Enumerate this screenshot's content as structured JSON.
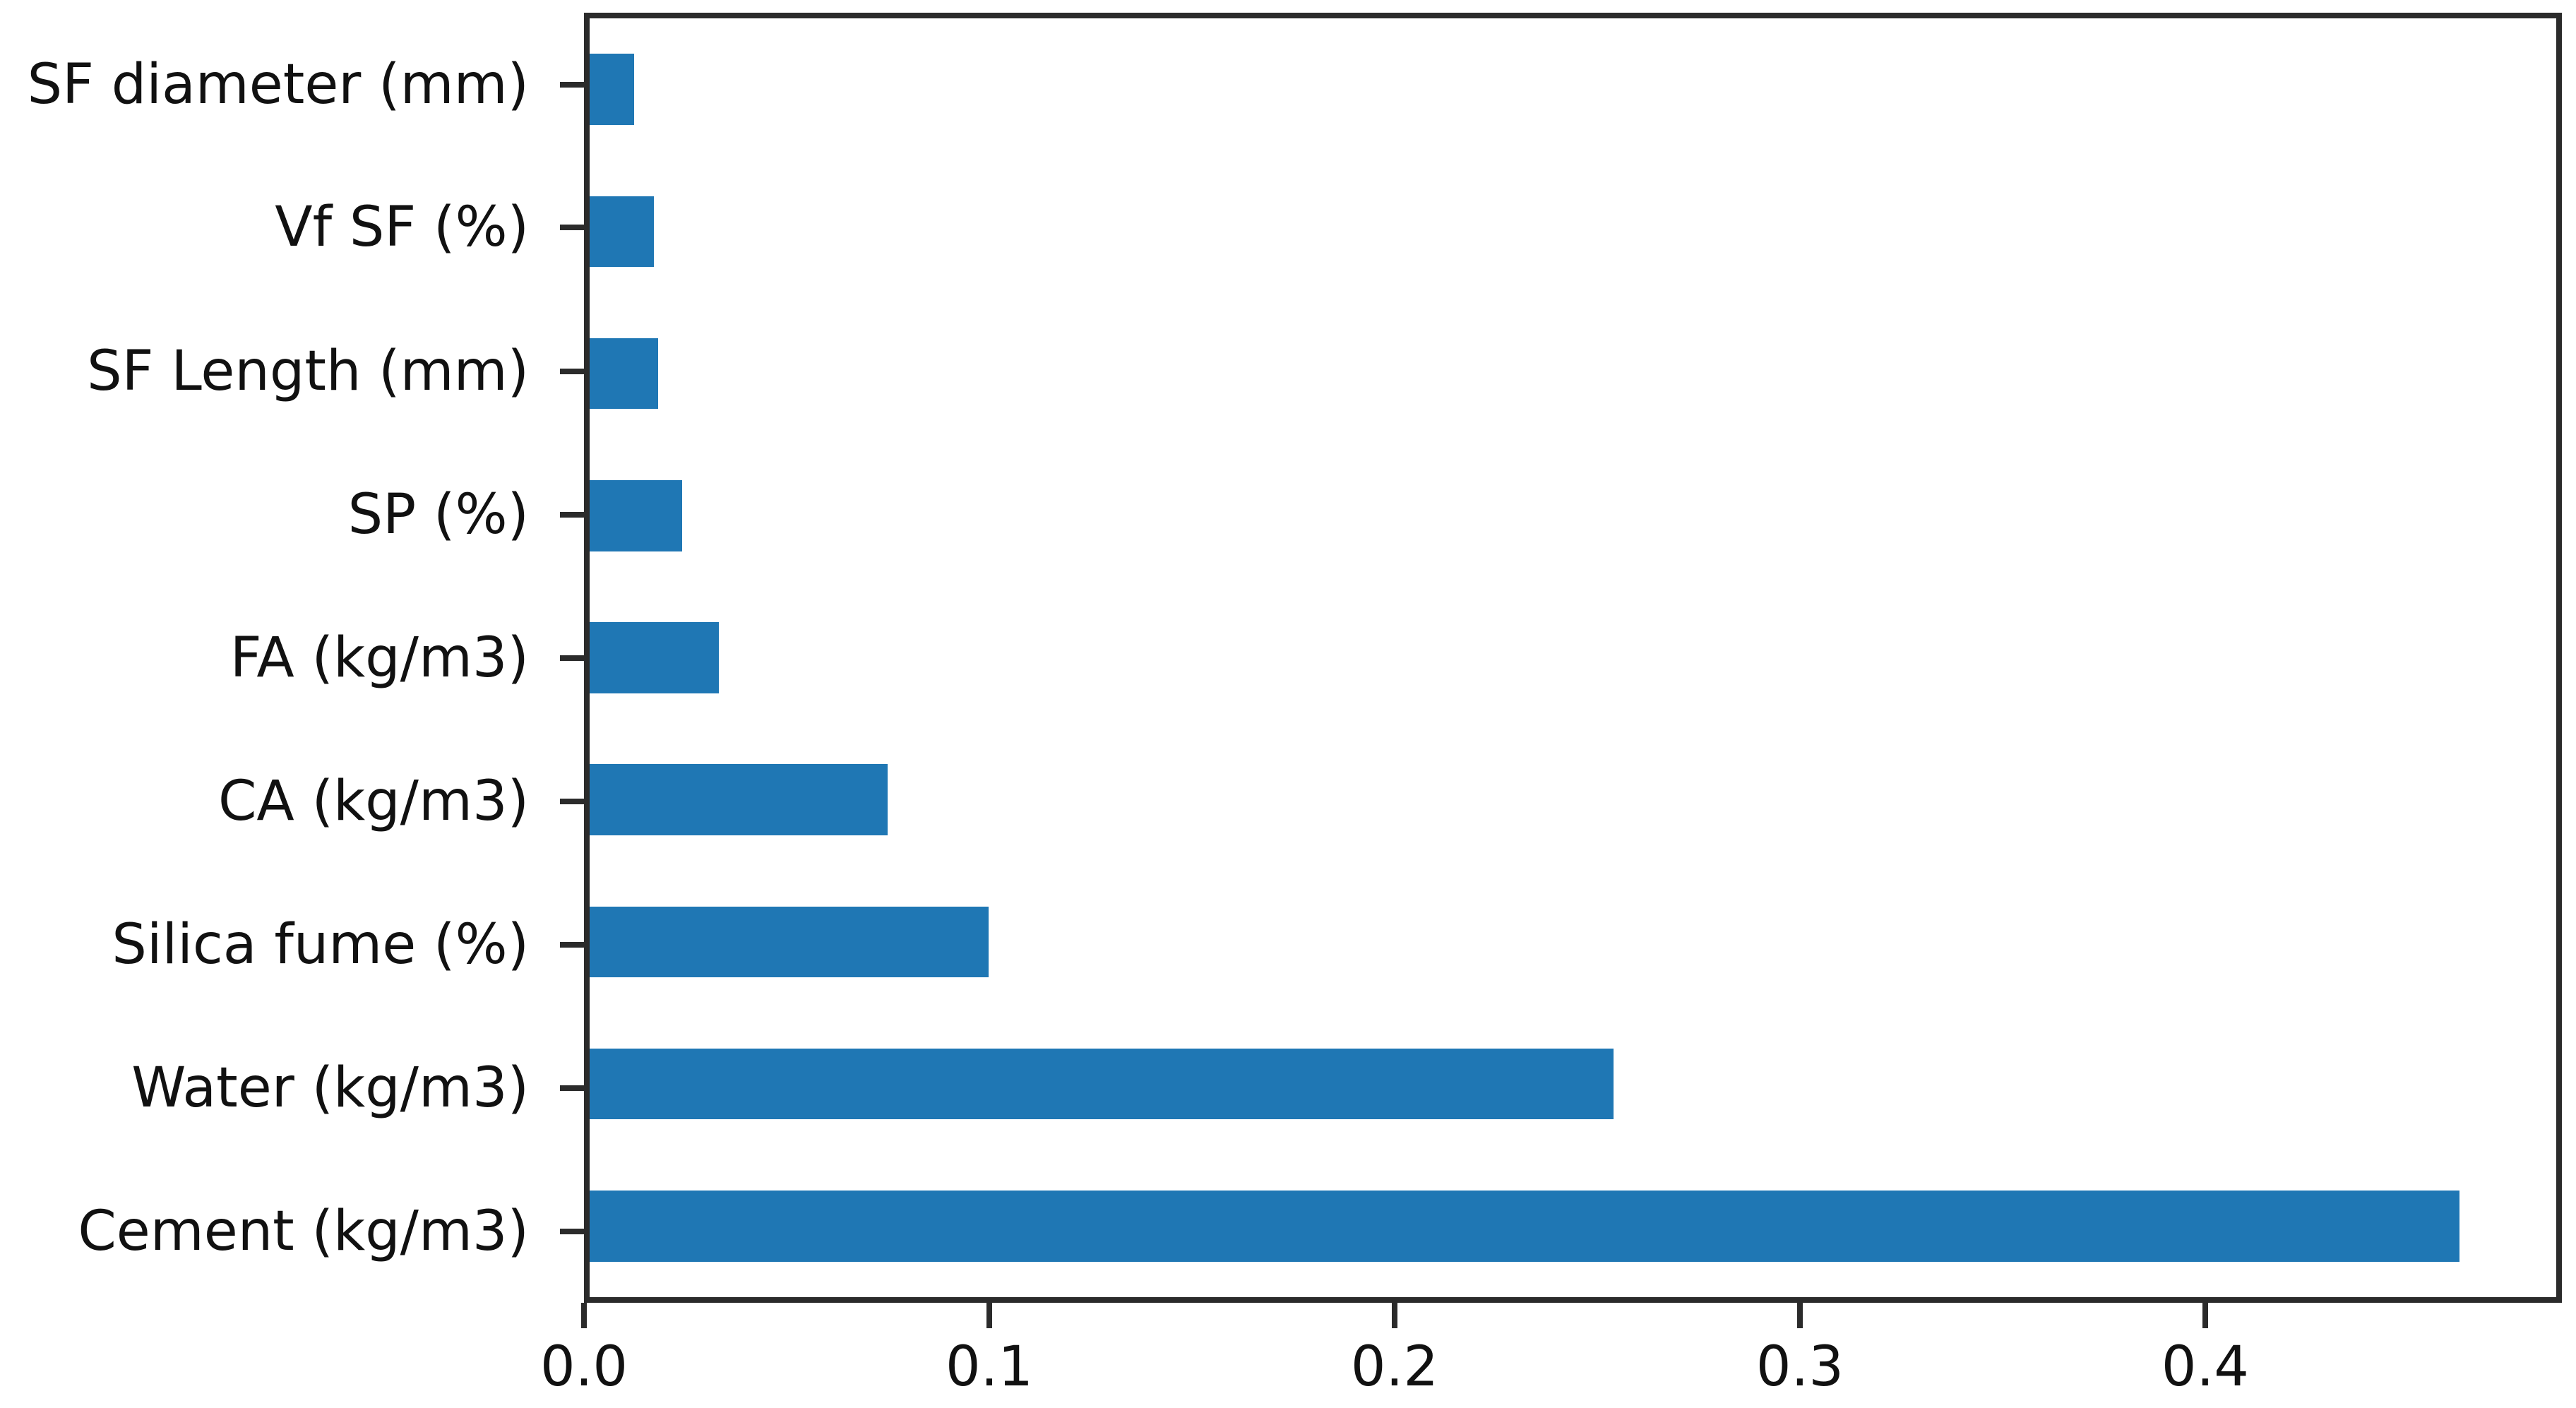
{
  "chart_data": {
    "type": "bar",
    "orientation": "horizontal",
    "title": "",
    "xlabel": "",
    "ylabel": "",
    "categories_top_to_bottom": [
      "SF diameter (mm)",
      "Vf SF (%)",
      "SF Length (mm)",
      "SP (%)",
      "FA (kg/m3)",
      "CA (kg/m3)",
      "Silica fume (%)",
      "Water (kg/m3)",
      "Cement (kg/m3)"
    ],
    "values": [
      0.011,
      0.016,
      0.017,
      0.023,
      0.032,
      0.074,
      0.099,
      0.254,
      0.464
    ],
    "x_ticks": [
      0.0,
      0.1,
      0.2,
      0.3,
      0.4
    ],
    "x_tick_labels": [
      "0.0",
      "0.1",
      "0.2",
      "0.3",
      "0.4"
    ],
    "xlim": [
      0,
      0.488
    ],
    "bar_rel_height": 0.5,
    "grid": false,
    "legend": null,
    "bar_color": "#1f77b4",
    "axis_color": "#2b2b2b",
    "text_color": "#111111",
    "background_color": "#ffffff"
  }
}
